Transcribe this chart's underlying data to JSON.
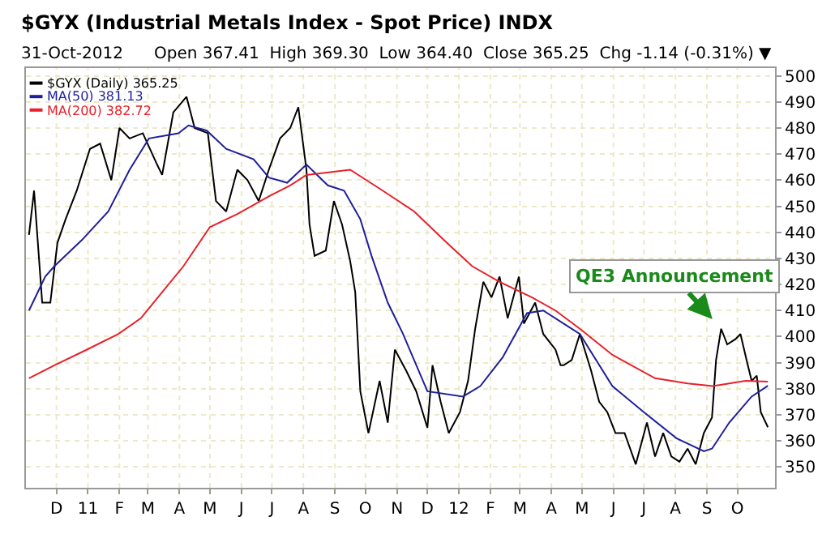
{
  "chart_data": {
    "type": "line",
    "title": "$GYX (Industrial Metals Index - Spot Price) INDX",
    "subtitle": "31-Oct-2012      Open 367.41  High 369.30  Low 364.40  Close 365.25  Chg -1.14 (-0.31%) ▼",
    "xlim": [
      "2010-11-01",
      "2012-11-07"
    ],
    "ylim": [
      342,
      503
    ],
    "xticks": [
      {
        "value": "2010-12-01",
        "label": "D"
      },
      {
        "value": "2011-01-01",
        "label": "11"
      },
      {
        "value": "2011-02-01",
        "label": "F"
      },
      {
        "value": "2011-03-01",
        "label": "M"
      },
      {
        "value": "2011-04-01",
        "label": "A"
      },
      {
        "value": "2011-05-01",
        "label": "M"
      },
      {
        "value": "2011-06-01",
        "label": "J"
      },
      {
        "value": "2011-07-01",
        "label": "J"
      },
      {
        "value": "2011-08-01",
        "label": "A"
      },
      {
        "value": "2011-09-01",
        "label": "S"
      },
      {
        "value": "2011-10-01",
        "label": "O"
      },
      {
        "value": "2011-11-01",
        "label": "N"
      },
      {
        "value": "2011-12-01",
        "label": "D"
      },
      {
        "value": "2012-01-01",
        "label": "12"
      },
      {
        "value": "2012-02-01",
        "label": "F"
      },
      {
        "value": "2012-03-01",
        "label": "M"
      },
      {
        "value": "2012-04-01",
        "label": "A"
      },
      {
        "value": "2012-05-01",
        "label": "M"
      },
      {
        "value": "2012-06-01",
        "label": "J"
      },
      {
        "value": "2012-07-01",
        "label": "J"
      },
      {
        "value": "2012-08-01",
        "label": "A"
      },
      {
        "value": "2012-09-01",
        "label": "S"
      },
      {
        "value": "2012-10-01",
        "label": "O"
      }
    ],
    "yticks": [
      350,
      360,
      370,
      380,
      390,
      400,
      410,
      420,
      430,
      440,
      450,
      460,
      470,
      480,
      490,
      500
    ],
    "grid": true,
    "legend": "top left",
    "annotations": [
      {
        "text": "QE3 Announcement",
        "x": "2012-09-15",
        "y": 403
      }
    ],
    "series": [
      {
        "name": "$GYX (Daily) 365.25",
        "color": "#000000",
        "x": [
          "2010-11-04",
          "2010-11-09",
          "2010-11-17",
          "2010-11-25",
          "2010-12-02",
          "2010-12-10",
          "2010-12-21",
          "2011-01-03",
          "2011-01-13",
          "2011-01-24",
          "2011-02-01",
          "2011-02-11",
          "2011-02-24",
          "2011-03-10",
          "2011-03-15",
          "2011-03-26",
          "2011-04-08",
          "2011-04-16",
          "2011-04-29",
          "2011-05-07",
          "2011-05-17",
          "2011-05-28",
          "2011-06-07",
          "2011-06-18",
          "2011-06-28",
          "2011-07-09",
          "2011-07-19",
          "2011-07-27",
          "2011-08-04",
          "2011-08-07",
          "2011-08-12",
          "2011-08-23",
          "2011-08-31",
          "2011-09-08",
          "2011-09-16",
          "2011-09-21",
          "2011-09-26",
          "2011-10-04",
          "2011-10-15",
          "2011-10-23",
          "2011-10-30",
          "2011-11-10",
          "2011-11-20",
          "2011-12-01",
          "2011-12-06",
          "2011-12-14",
          "2011-12-22",
          "2012-01-02",
          "2012-01-10",
          "2012-01-17",
          "2012-01-25",
          "2012-02-02",
          "2012-02-10",
          "2012-02-18",
          "2012-02-29",
          "2012-03-05",
          "2012-03-16",
          "2012-03-24",
          "2012-04-05",
          "2012-04-10",
          "2012-04-13",
          "2012-04-21",
          "2012-04-29",
          "2012-05-10",
          "2012-05-18",
          "2012-05-26",
          "2012-06-03",
          "2012-06-12",
          "2012-06-23",
          "2012-07-04",
          "2012-07-12",
          "2012-07-20",
          "2012-07-28",
          "2012-08-05",
          "2012-08-13",
          "2012-08-21",
          "2012-08-29",
          "2012-09-06",
          "2012-09-10",
          "2012-09-15",
          "2012-09-21",
          "2012-09-29",
          "2012-10-04",
          "2012-10-10",
          "2012-10-15",
          "2012-10-20",
          "2012-10-24",
          "2012-10-31"
        ],
        "values": [
          439,
          456,
          413,
          413,
          436,
          445,
          456,
          472,
          474,
          460,
          480,
          476,
          478,
          466,
          462,
          486,
          492,
          480,
          478,
          452,
          448,
          464,
          460,
          452,
          464,
          476,
          480,
          488,
          464,
          443,
          431,
          433,
          452,
          443,
          429,
          417,
          379,
          363,
          383,
          367,
          395,
          387,
          379,
          365,
          389,
          375,
          363,
          371,
          383,
          403,
          421,
          415,
          423,
          407,
          423,
          405,
          413,
          401,
          395,
          389,
          389,
          391,
          401,
          387,
          375,
          371,
          363,
          363,
          351,
          367,
          354,
          363,
          354,
          352,
          357,
          351,
          363,
          369,
          391,
          403,
          397,
          399,
          401,
          391,
          383,
          385,
          371,
          365.25
        ]
      },
      {
        "name": "MA(50) 381.13",
        "color": "#1f1f99",
        "x": [
          "2010-11-04",
          "2010-11-20",
          "2010-11-29",
          "2010-12-26",
          "2011-01-21",
          "2011-02-11",
          "2011-03-02",
          "2011-03-31",
          "2011-04-10",
          "2011-04-28",
          "2011-05-17",
          "2011-06-13",
          "2011-06-28",
          "2011-07-16",
          "2011-08-04",
          "2011-08-25",
          "2011-09-10",
          "2011-09-26",
          "2011-10-07",
          "2011-10-23",
          "2011-11-07",
          "2011-12-01",
          "2012-01-05",
          "2012-01-22",
          "2012-02-13",
          "2012-03-08",
          "2012-03-24",
          "2012-04-13",
          "2012-04-29",
          "2012-05-31",
          "2012-07-01",
          "2012-08-02",
          "2012-08-29",
          "2012-09-06",
          "2012-09-23",
          "2012-10-15",
          "2012-10-31"
        ],
        "values": [
          410,
          423,
          427,
          437,
          448,
          464,
          476,
          478,
          481,
          479,
          472,
          468,
          461,
          459,
          466,
          458,
          456,
          445,
          431,
          413,
          401,
          379,
          377,
          381,
          392,
          409,
          410,
          405,
          401,
          381,
          371,
          361,
          356,
          357,
          367,
          377,
          381.13
        ]
      },
      {
        "name": "MA(200) 382.72",
        "color": "#e8202a",
        "x": [
          "2010-11-04",
          "2010-11-29",
          "2010-12-31",
          "2011-01-31",
          "2011-02-22",
          "2011-03-15",
          "2011-04-05",
          "2011-05-01",
          "2011-05-28",
          "2011-06-29",
          "2011-07-19",
          "2011-08-04",
          "2011-09-16",
          "2011-10-18",
          "2011-11-18",
          "2011-12-20",
          "2012-01-14",
          "2012-02-10",
          "2012-03-13",
          "2012-04-05",
          "2012-04-29",
          "2012-05-31",
          "2012-07-12",
          "2012-08-13",
          "2012-09-07",
          "2012-10-09",
          "2012-10-31"
        ],
        "values": [
          384,
          389,
          395,
          401,
          407,
          417,
          427,
          442,
          447,
          454,
          458,
          462,
          464,
          456,
          448,
          436,
          427,
          421,
          415,
          410,
          403,
          393,
          384,
          382,
          381,
          383,
          382.72
        ]
      }
    ]
  }
}
